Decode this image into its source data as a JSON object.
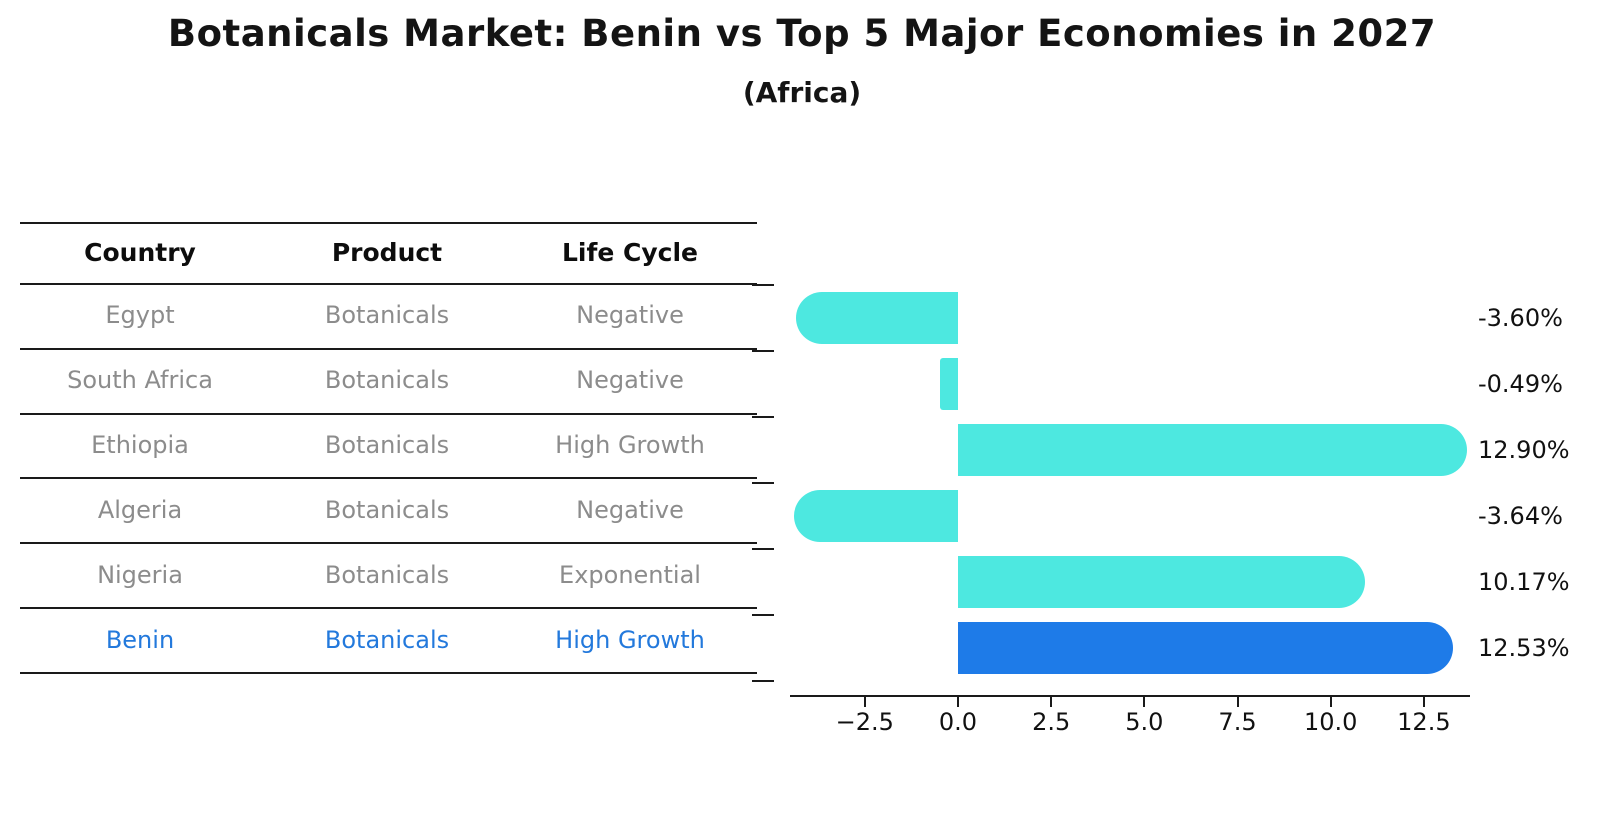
{
  "title": "Botanicals Market: Benin vs Top 5 Major Economies in 2027",
  "subtitle": "(Africa)",
  "table": {
    "headers": [
      "Country",
      "Product",
      "Life Cycle"
    ],
    "rows": [
      {
        "country": "Egypt",
        "product": "Botanicals",
        "life_cycle": "Negative",
        "highlighted": false
      },
      {
        "country": "South Africa",
        "product": "Botanicals",
        "life_cycle": "Negative",
        "highlighted": false
      },
      {
        "country": "Ethiopia",
        "product": "Botanicals",
        "life_cycle": "High Growth",
        "highlighted": false
      },
      {
        "country": "Algeria",
        "product": "Botanicals",
        "life_cycle": "Negative",
        "highlighted": false
      },
      {
        "country": "Nigeria",
        "product": "Botanicals",
        "life_cycle": "Exponential",
        "highlighted": false
      },
      {
        "country": "Benin",
        "product": "Botanicals",
        "life_cycle": "High Growth",
        "highlighted": true
      }
    ]
  },
  "chart_data": {
    "type": "bar",
    "orientation": "horizontal",
    "title": "Botanicals Market: Benin vs Top 5 Major Economies in 2027",
    "subtitle": "(Africa)",
    "categories": [
      "Egypt",
      "South Africa",
      "Ethiopia",
      "Algeria",
      "Nigeria",
      "Benin"
    ],
    "values": [
      -3.6,
      -0.49,
      12.9,
      -3.64,
      10.17,
      12.53
    ],
    "value_labels": [
      "-3.60%",
      "-0.49%",
      "12.90%",
      "-3.64%",
      "10.17%",
      "12.53%"
    ],
    "x_ticks": [
      -2.5,
      0.0,
      2.5,
      5.0,
      7.5,
      10.0,
      12.5
    ],
    "x_tick_labels": [
      "−2.5",
      "0.0",
      "2.5",
      "5.0",
      "7.5",
      "10.0",
      "12.5"
    ],
    "xlim": [
      -4.5,
      13.8
    ],
    "grid": false,
    "legend": false,
    "highlight_index": 5,
    "unit": "%"
  },
  "colors": {
    "bar": "#4DE8E0",
    "highlight_bar": "#1E7BE8",
    "highlight_text": "#2379DC",
    "row_text": "#8C8C8C",
    "header_text": "#0D0D0D",
    "line": "#1A1A1A",
    "background": "#FFFFFF"
  }
}
